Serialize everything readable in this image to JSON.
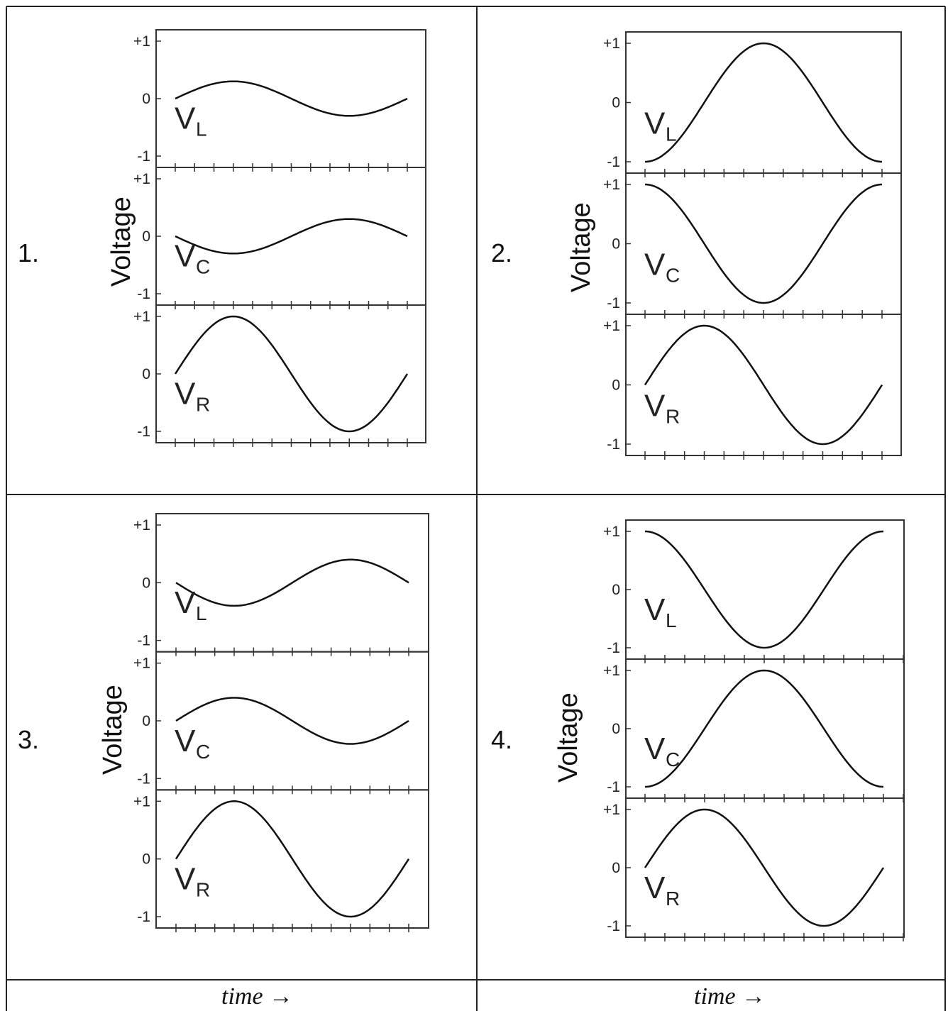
{
  "chart_data": [
    {
      "type": "line",
      "panel_label": "1.",
      "ylabel": "Voltage",
      "xlabel": "time →",
      "yticks": [
        "+1",
        "0",
        "-1"
      ],
      "ylim": [
        -1,
        1
      ],
      "x_range_cycles": [
        0,
        1
      ],
      "subplots": [
        {
          "name": "V",
          "subscript": "L",
          "amplitude": 0.3,
          "phase_deg": 0,
          "x": [
            0,
            0.25,
            0.5,
            0.75,
            1
          ],
          "y": [
            0,
            0.3,
            0,
            -0.3,
            0
          ]
        },
        {
          "name": "V",
          "subscript": "C",
          "amplitude": 0.3,
          "phase_deg": 180,
          "x": [
            0,
            0.25,
            0.5,
            0.75,
            1
          ],
          "y": [
            0,
            -0.3,
            0,
            0.3,
            0
          ]
        },
        {
          "name": "V",
          "subscript": "R",
          "amplitude": 1.0,
          "phase_deg": 0,
          "x": [
            0,
            0.25,
            0.5,
            0.75,
            1
          ],
          "y": [
            0,
            1,
            0,
            -1,
            0
          ]
        }
      ]
    },
    {
      "type": "line",
      "panel_label": "2.",
      "ylabel": "Voltage",
      "xlabel": "time →",
      "yticks": [
        "+1",
        "0",
        "-1"
      ],
      "ylim": [
        -1,
        1
      ],
      "x_range_cycles": [
        0,
        1
      ],
      "subplots": [
        {
          "name": "V",
          "subscript": "L",
          "amplitude": 1.0,
          "phase_deg": 270,
          "x": [
            0,
            0.25,
            0.5,
            0.75,
            1
          ],
          "y": [
            -1,
            0,
            1,
            0,
            -1
          ]
        },
        {
          "name": "V",
          "subscript": "C",
          "amplitude": 1.0,
          "phase_deg": 90,
          "x": [
            0,
            0.25,
            0.5,
            0.75,
            1
          ],
          "y": [
            1,
            0,
            -1,
            0,
            1
          ]
        },
        {
          "name": "V",
          "subscript": "R",
          "amplitude": 1.0,
          "phase_deg": 0,
          "x": [
            0,
            0.25,
            0.5,
            0.75,
            1
          ],
          "y": [
            0,
            1,
            0,
            -1,
            0
          ]
        }
      ]
    },
    {
      "type": "line",
      "panel_label": "3.",
      "ylabel": "Voltage",
      "xlabel": "time →",
      "yticks": [
        "+1",
        "0",
        "-1"
      ],
      "ylim": [
        -1,
        1
      ],
      "x_range_cycles": [
        0,
        1
      ],
      "subplots": [
        {
          "name": "V",
          "subscript": "L",
          "amplitude": 0.4,
          "phase_deg": 180,
          "x": [
            0,
            0.25,
            0.5,
            0.75,
            1
          ],
          "y": [
            0,
            -0.4,
            0,
            0.4,
            0
          ]
        },
        {
          "name": "V",
          "subscript": "C",
          "amplitude": 0.4,
          "phase_deg": 0,
          "x": [
            0,
            0.25,
            0.5,
            0.75,
            1
          ],
          "y": [
            0,
            0.4,
            0,
            -0.4,
            0
          ]
        },
        {
          "name": "V",
          "subscript": "R",
          "amplitude": 1.0,
          "phase_deg": 0,
          "x": [
            0,
            0.25,
            0.5,
            0.75,
            1
          ],
          "y": [
            0,
            1,
            0,
            -1,
            0
          ]
        }
      ]
    },
    {
      "type": "line",
      "panel_label": "4.",
      "ylabel": "Voltage",
      "xlabel": "time →",
      "yticks": [
        "+1",
        "0",
        "-1"
      ],
      "ylim": [
        -1,
        1
      ],
      "x_range_cycles": [
        0,
        1
      ],
      "subplots": [
        {
          "name": "V",
          "subscript": "L",
          "amplitude": 1.0,
          "phase_deg": 90,
          "x": [
            0,
            0.25,
            0.5,
            0.75,
            1
          ],
          "y": [
            1,
            0,
            -1,
            0,
            1
          ]
        },
        {
          "name": "V",
          "subscript": "C",
          "amplitude": 1.0,
          "phase_deg": 270,
          "x": [
            0,
            0.25,
            0.5,
            0.75,
            1
          ],
          "y": [
            -1,
            0,
            1,
            0,
            -1
          ]
        },
        {
          "name": "V",
          "subscript": "R",
          "amplitude": 1.0,
          "phase_deg": 0,
          "x": [
            0,
            0.25,
            0.5,
            0.75,
            1
          ],
          "y": [
            0,
            1,
            0,
            -1,
            0
          ]
        }
      ]
    }
  ]
}
